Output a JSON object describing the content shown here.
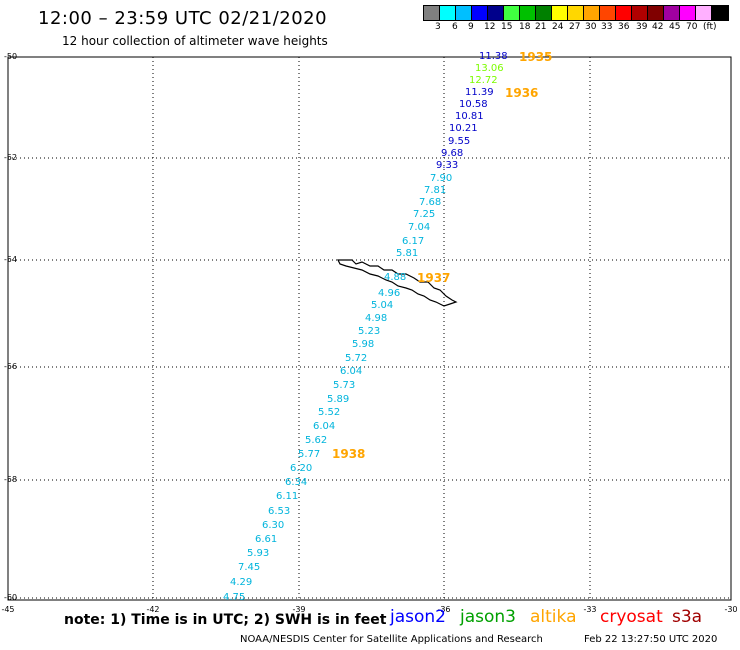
{
  "header": {
    "title": "12:00 – 23:59 UTC 02/21/2020",
    "subtitle": "12 hour collection of altimeter wave heights"
  },
  "legend": {
    "colors": [
      "#808080",
      "#00ffff",
      "#00bfff",
      "#0000ff",
      "#00008b",
      "#40ff40",
      "#00c000",
      "#008000",
      "#ffff00",
      "#ffd700",
      "#ffa500",
      "#ff4500",
      "#ff0000",
      "#b00000",
      "#800000",
      "#a000a0",
      "#ff00ff",
      "#ffb0ff",
      "#000000"
    ],
    "labels": [
      "3",
      "6",
      "9",
      "12",
      "15",
      "18",
      "21",
      "24",
      "27",
      "30",
      "33",
      "36",
      "39",
      "42",
      "45",
      "70",
      "(ft)"
    ]
  },
  "map": {
    "lat_ticks": [
      "-50",
      "-52",
      "-54",
      "-56",
      "-58",
      "-60"
    ],
    "lon_ticks": [
      "-45",
      "-42",
      "-39",
      "-36",
      "-33",
      "-30"
    ],
    "track_labels": [
      {
        "text": "11.38",
        "color": "#0000c8"
      },
      {
        "text": "13.06",
        "color": "#7cfc00"
      },
      {
        "text": "12.72",
        "color": "#7cfc00"
      },
      {
        "text": "11.39",
        "color": "#0000c8"
      },
      {
        "text": "10.58",
        "color": "#0000c8"
      },
      {
        "text": "10.81",
        "color": "#0000c8"
      },
      {
        "text": "10.21",
        "color": "#0000c8"
      },
      {
        "text": "9.55",
        "color": "#0000c8"
      },
      {
        "text": "9.68",
        "color": "#0000c8"
      },
      {
        "text": "9.33",
        "color": "#0000c8"
      },
      {
        "text": "7.90",
        "color": "#00b4dc"
      },
      {
        "text": "7.81",
        "color": "#00b4dc"
      },
      {
        "text": "7.68",
        "color": "#00b4dc"
      },
      {
        "text": "7.25",
        "color": "#00b4dc"
      },
      {
        "text": "7.04",
        "color": "#00b4dc"
      },
      {
        "text": "6.17",
        "color": "#00b4dc"
      },
      {
        "text": "5.81",
        "color": "#00b4dc"
      },
      {
        "text": "4.88",
        "color": "#00b4dc"
      },
      {
        "text": "4.96",
        "color": "#00b4dc"
      },
      {
        "text": "5.04",
        "color": "#00b4dc"
      },
      {
        "text": "4.98",
        "color": "#00b4dc"
      },
      {
        "text": "5.23",
        "color": "#00b4dc"
      },
      {
        "text": "5.98",
        "color": "#00b4dc"
      },
      {
        "text": "5.72",
        "color": "#00b4dc"
      },
      {
        "text": "6.04",
        "color": "#00b4dc"
      },
      {
        "text": "5.73",
        "color": "#00b4dc"
      },
      {
        "text": "5.89",
        "color": "#00b4dc"
      },
      {
        "text": "5.52",
        "color": "#00b4dc"
      },
      {
        "text": "6.04",
        "color": "#00b4dc"
      },
      {
        "text": "5.62",
        "color": "#00b4dc"
      },
      {
        "text": "5.77",
        "color": "#00b4dc"
      },
      {
        "text": "6.20",
        "color": "#00b4dc"
      },
      {
        "text": "6.34",
        "color": "#00b4dc"
      },
      {
        "text": "6.11",
        "color": "#00b4dc"
      },
      {
        "text": "6.53",
        "color": "#00b4dc"
      },
      {
        "text": "6.30",
        "color": "#00b4dc"
      },
      {
        "text": "6.61",
        "color": "#00b4dc"
      },
      {
        "text": "5.93",
        "color": "#00b4dc"
      },
      {
        "text": "7.45",
        "color": "#00b4dc"
      },
      {
        "text": "4.29",
        "color": "#00b4dc"
      },
      {
        "text": "4.75",
        "color": "#00b4dc"
      }
    ],
    "time_labels": [
      "1935",
      "1936",
      "1937",
      "1938"
    ]
  },
  "footer": {
    "note": "note:  1) Time is in UTC;  2) SWH is in feet",
    "satellites": [
      {
        "name": "jason2",
        "color": "#0000ff"
      },
      {
        "name": "jason3",
        "color": "#00a000"
      },
      {
        "name": "altika",
        "color": "#ffa500"
      },
      {
        "name": "cryosat",
        "color": "#ff0000"
      },
      {
        "name": "s3a",
        "color": "#a00000"
      }
    ],
    "credit": "NOAA/NESDIS Center for Satellite Applications and Research",
    "timestamp": "Feb 22 13:27:50 UTC 2020"
  }
}
